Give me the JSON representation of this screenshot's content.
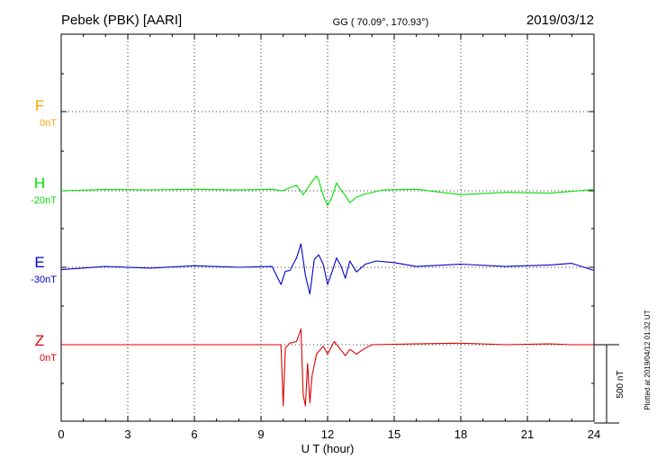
{
  "header": {
    "station": "Pebek (PBK)  [AARI]",
    "coords": "GG ( 70.09°, 170.93°)",
    "date": "2019/03/12"
  },
  "footer": {
    "plotted": "Plotted at 2019/04/12 01:32 UT",
    "scale_label": "500 nT"
  },
  "chart_data": {
    "type": "line",
    "title": "Pebek (PBK)  [AARI]",
    "xlabel": "U T (hour)",
    "ylabel": "",
    "xlim": [
      0,
      24
    ],
    "x_ticks": [
      0,
      3,
      6,
      9,
      12,
      15,
      18,
      21,
      24
    ],
    "x_tick_labels": [
      "0",
      "3",
      "6",
      "9",
      "12",
      "15",
      "18",
      "21",
      "24"
    ],
    "grid": true,
    "scale_bar_nT": 500,
    "channels": [
      {
        "name": "F",
        "offset_label": "0nT",
        "color": "#ffa500"
      },
      {
        "name": "H",
        "offset_label": "-20nT",
        "color": "#00e000"
      },
      {
        "name": "E",
        "offset_label": "-30nT",
        "color": "#0000cc"
      },
      {
        "name": "Z",
        "offset_label": "0nT",
        "color": "#e00000"
      }
    ],
    "series": [
      {
        "name": "H",
        "x": [
          0,
          2,
          4,
          6,
          8,
          9.5,
          10,
          10.3,
          10.6,
          10.9,
          11.2,
          11.5,
          11.6,
          11.8,
          12.0,
          12.2,
          12.4,
          12.6,
          12.8,
          13.0,
          13.3,
          13.7,
          14.5,
          16,
          18,
          20,
          22,
          24
        ],
        "values": [
          0,
          8,
          6,
          10,
          5,
          10,
          0,
          20,
          35,
          -25,
          40,
          95,
          70,
          -30,
          -95,
          -40,
          50,
          5,
          -30,
          -75,
          -40,
          -20,
          5,
          10,
          -25,
          -10,
          -15,
          8
        ]
      },
      {
        "name": "E",
        "x": [
          0,
          2,
          4,
          6,
          8,
          9.5,
          9.9,
          10.1,
          10.3,
          10.6,
          10.8,
          11.0,
          11.2,
          11.4,
          11.6,
          11.8,
          12.0,
          12.2,
          12.4,
          12.6,
          12.8,
          13.0,
          13.3,
          13.7,
          14.2,
          15,
          16,
          18,
          20,
          22,
          23,
          24
        ],
        "values": [
          -15,
          5,
          -5,
          10,
          0,
          5,
          -110,
          -25,
          -20,
          60,
          150,
          -50,
          -170,
          50,
          80,
          20,
          -110,
          -30,
          60,
          10,
          -70,
          40,
          -30,
          20,
          40,
          30,
          5,
          20,
          5,
          15,
          25,
          -20
        ]
      },
      {
        "name": "Z",
        "x": [
          0,
          2,
          4,
          6,
          8,
          9.5,
          9.9,
          10.0,
          10.1,
          10.3,
          10.6,
          10.8,
          10.9,
          11.0,
          11.1,
          11.2,
          11.3,
          11.5,
          11.8,
          12.0,
          12.3,
          12.8,
          13.0,
          13.3,
          13.6,
          14.0,
          16,
          18,
          20,
          22,
          23,
          24
        ],
        "values": [
          0,
          0,
          0,
          0,
          0,
          0,
          0,
          -390,
          -20,
          10,
          20,
          100,
          -320,
          -390,
          -120,
          -370,
          -200,
          -60,
          -10,
          -60,
          20,
          -70,
          -30,
          -60,
          -30,
          0,
          5,
          10,
          0,
          5,
          0,
          0
        ]
      }
    ]
  }
}
